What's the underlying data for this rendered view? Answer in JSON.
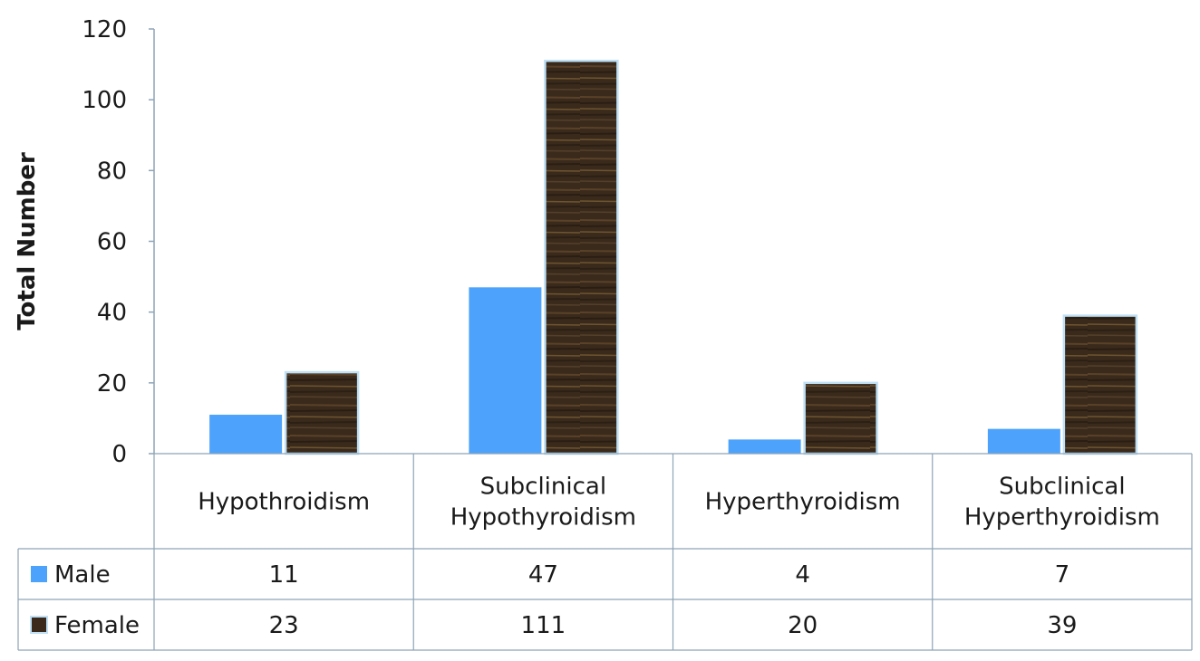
{
  "chart_data": {
    "type": "bar",
    "categories": [
      "Hypothroidism",
      "Subclinical Hypothyroidism",
      "Hyperthyroidism",
      "Subclinical Hyperthyroidism"
    ],
    "category_lines": [
      [
        "Hypothroidism"
      ],
      [
        "Subclinical",
        "Hypothyroidism"
      ],
      [
        "Hyperthyroidism"
      ],
      [
        "Subclinical",
        "Hyperthyroidism"
      ]
    ],
    "series": [
      {
        "name": "Male",
        "values": [
          11,
          47,
          4,
          7
        ],
        "color": "#4da3fb"
      },
      {
        "name": "Female",
        "values": [
          23,
          111,
          20,
          39
        ],
        "color": "#3b2a1c"
      }
    ],
    "ylabel": "Total Number",
    "ylim": [
      0,
      120
    ],
    "yticks": [
      0,
      20,
      40,
      60,
      80,
      100,
      120
    ],
    "grid": false,
    "legend": "data-table",
    "colors": {
      "male": "#4da3fb",
      "female": "#3b2a1c",
      "female_grain": "#7a5a2a",
      "bar_border": "#bfe0f5",
      "table_line": "#8ea4b6"
    }
  }
}
